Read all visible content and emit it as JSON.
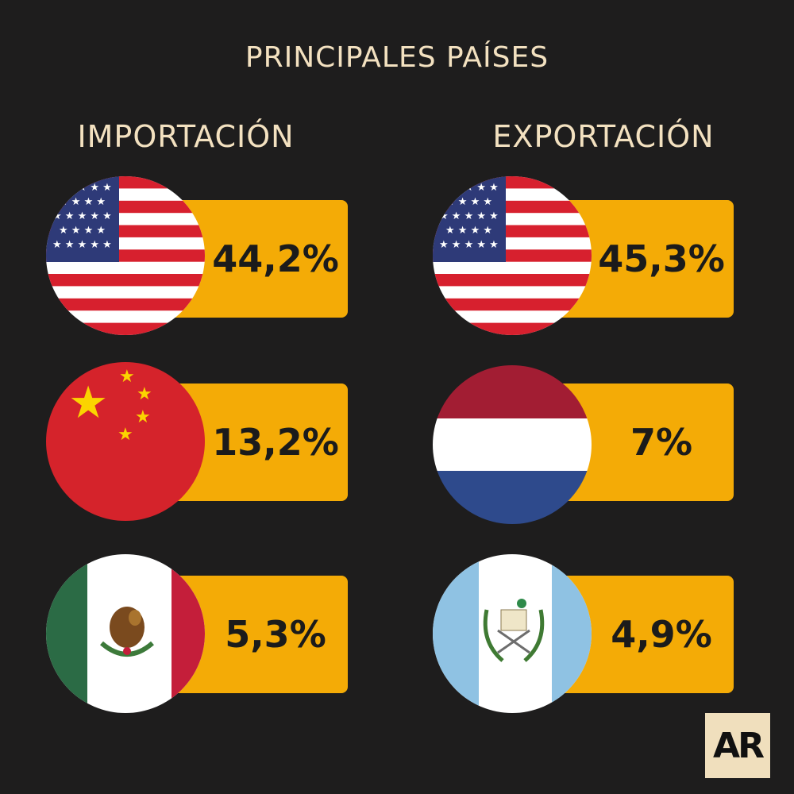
{
  "title": "PRINCIPALES PAÍSES",
  "columns": {
    "import_title": "IMPORTACIÓN",
    "export_title": "EXPORTACIÓN"
  },
  "import": [
    {
      "flag": "usa-flag-icon",
      "value": "44,2%"
    },
    {
      "flag": "china-flag-icon",
      "value": "13,2%"
    },
    {
      "flag": "mexico-flag-icon",
      "value": "5,3%"
    }
  ],
  "export": [
    {
      "flag": "usa-flag-icon",
      "value": "45,3%"
    },
    {
      "flag": "netherlands-flag-icon",
      "value": "7%"
    },
    {
      "flag": "guatemala-flag-icon",
      "value": "4,9%"
    }
  ],
  "brand": {
    "logo": "AR"
  },
  "colors": {
    "background": "#1e1d1d",
    "bar": "#f4ab06",
    "title": "#f3e1c0"
  }
}
